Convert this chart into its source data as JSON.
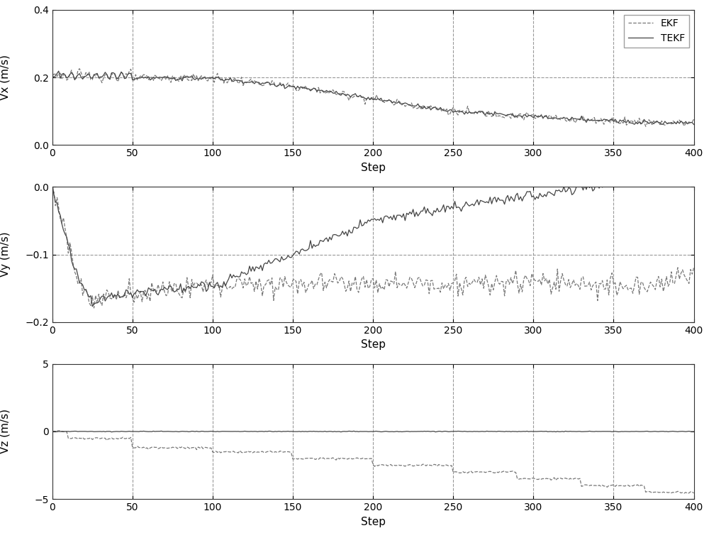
{
  "steps": 401,
  "xlim": [
    0,
    400
  ],
  "xticks": [
    0,
    50,
    100,
    150,
    200,
    250,
    300,
    350,
    400
  ],
  "xlabel": "Step",
  "subplot1": {
    "ylabel": "Vx (m/s)",
    "ylim": [
      0,
      0.4
    ],
    "yticks": [
      0,
      0.2,
      0.4
    ],
    "hline": 0.2
  },
  "subplot2": {
    "ylabel": "Vy (m/s)",
    "ylim": [
      -0.2,
      0
    ],
    "yticks": [
      -0.2,
      -0.1,
      0
    ],
    "hline": -0.1
  },
  "subplot3": {
    "ylabel": "Vz (m/s)",
    "ylim": [
      -5,
      5
    ],
    "yticks": [
      -5,
      0,
      5
    ]
  },
  "ekf_color": "#777777",
  "tekf_color": "#444444",
  "ekf_linestyle": "--",
  "tekf_linestyle": "-",
  "linewidth": 0.9,
  "hline_color": "#999999",
  "vline_color": "#999999",
  "vline_linestyle": "--",
  "background_color": "#ffffff",
  "vline_positions": [
    50,
    100,
    150,
    200,
    250,
    300,
    350
  ]
}
